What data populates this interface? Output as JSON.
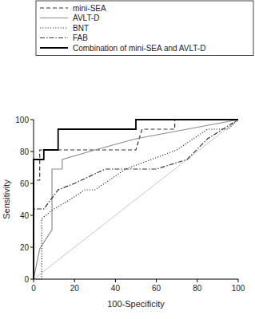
{
  "chart_data": {
    "type": "line",
    "xlabel": "100-Specificity",
    "ylabel": "Sensitivity",
    "xlim": [
      0,
      100
    ],
    "ylim": [
      0,
      100
    ],
    "xticks": [
      0,
      20,
      40,
      60,
      80,
      100
    ],
    "yticks": [
      0,
      20,
      40,
      60,
      80,
      100
    ],
    "legend": "top-right",
    "series": [
      {
        "name": "mini-SEA",
        "color": "#333333",
        "line_style": "dashed",
        "x": [
          0,
          0,
          3,
          3,
          50,
          53,
          69,
          69,
          100
        ],
        "values": [
          0,
          62,
          62,
          81,
          81,
          94,
          94,
          100,
          100
        ]
      },
      {
        "name": "AVLT-D",
        "color": "#8c8c8c",
        "line_style": "solid",
        "x": [
          0,
          3,
          9,
          9,
          14,
          14,
          30,
          50,
          100
        ],
        "values": [
          0,
          19,
          31,
          69,
          69,
          75,
          81,
          88,
          100
        ]
      },
      {
        "name": "BNT",
        "color": "#333333",
        "line_style": "dotted",
        "x": [
          0,
          4,
          4,
          10,
          18,
          25,
          30,
          45,
          70,
          85,
          95,
          100
        ],
        "values": [
          0,
          0,
          38,
          44,
          50,
          56,
          56,
          69,
          81,
          94,
          94,
          100
        ]
      },
      {
        "name": "FAB",
        "color": "#333333",
        "line_style": "dashdot",
        "x": [
          0,
          0,
          5,
          12,
          20,
          35,
          60,
          75,
          85,
          100
        ],
        "values": [
          0,
          44,
          44,
          56,
          60,
          69,
          69,
          75,
          88,
          100
        ]
      },
      {
        "name": "Combination of mini-SEA and AVLT-D",
        "color": "#000000",
        "line_style": "solid",
        "x": [
          0,
          0,
          5,
          5,
          12,
          12,
          50,
          50,
          100
        ],
        "values": [
          0,
          75,
          75,
          81,
          81,
          94,
          94,
          100,
          100
        ]
      }
    ]
  }
}
